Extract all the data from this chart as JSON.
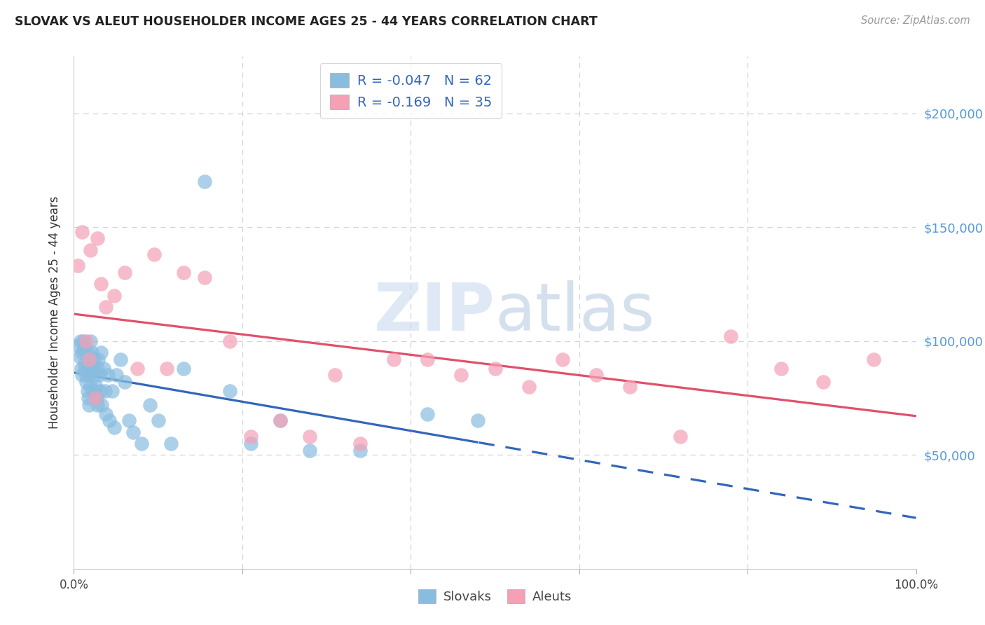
{
  "title": "SLOVAK VS ALEUT HOUSEHOLDER INCOME AGES 25 - 44 YEARS CORRELATION CHART",
  "source": "Source: ZipAtlas.com",
  "ylabel": "Householder Income Ages 25 - 44 years",
  "ytick_labels": [
    "$50,000",
    "$100,000",
    "$150,000",
    "$200,000"
  ],
  "ytick_values": [
    50000,
    100000,
    150000,
    200000
  ],
  "ylim": [
    0,
    225000
  ],
  "xlim": [
    0,
    1.0
  ],
  "slovak_R": -0.047,
  "slovak_N": 62,
  "aleut_R": -0.169,
  "aleut_N": 35,
  "slovak_color": "#89bde0",
  "aleut_color": "#f5a0b5",
  "slovak_line_color": "#3366bb",
  "aleut_line_color": "#e0506a",
  "legend_text_color": "#3366bb",
  "background_color": "#ffffff",
  "watermark_part1": "ZIP",
  "watermark_part2": "atlas",
  "slovak_x": [
    0.005,
    0.007,
    0.008,
    0.009,
    0.01,
    0.01,
    0.011,
    0.012,
    0.013,
    0.013,
    0.014,
    0.015,
    0.015,
    0.016,
    0.016,
    0.017,
    0.017,
    0.018,
    0.018,
    0.019,
    0.02,
    0.02,
    0.021,
    0.022,
    0.023,
    0.023,
    0.024,
    0.025,
    0.026,
    0.027,
    0.028,
    0.028,
    0.029,
    0.03,
    0.031,
    0.032,
    0.033,
    0.035,
    0.037,
    0.038,
    0.04,
    0.042,
    0.045,
    0.048,
    0.05,
    0.055,
    0.06,
    0.065,
    0.07,
    0.08,
    0.09,
    0.1,
    0.115,
    0.13,
    0.155,
    0.185,
    0.21,
    0.245,
    0.28,
    0.34,
    0.42,
    0.48
  ],
  "slovak_y": [
    98000,
    93000,
    100000,
    88000,
    95000,
    85000,
    100000,
    97000,
    96000,
    90000,
    88000,
    85000,
    82000,
    95000,
    78000,
    88000,
    75000,
    92000,
    72000,
    85000,
    100000,
    80000,
    95000,
    90000,
    88000,
    78000,
    92000,
    85000,
    80000,
    75000,
    88000,
    72000,
    92000,
    85000,
    78000,
    95000,
    72000,
    88000,
    78000,
    68000,
    85000,
    65000,
    78000,
    62000,
    85000,
    92000,
    82000,
    65000,
    60000,
    55000,
    72000,
    65000,
    55000,
    88000,
    170000,
    78000,
    55000,
    65000,
    52000,
    52000,
    68000,
    65000
  ],
  "aleut_x": [
    0.005,
    0.01,
    0.015,
    0.018,
    0.02,
    0.025,
    0.028,
    0.032,
    0.038,
    0.048,
    0.06,
    0.075,
    0.095,
    0.11,
    0.13,
    0.155,
    0.185,
    0.21,
    0.245,
    0.28,
    0.31,
    0.34,
    0.38,
    0.42,
    0.46,
    0.5,
    0.54,
    0.58,
    0.62,
    0.66,
    0.72,
    0.78,
    0.84,
    0.89,
    0.95
  ],
  "aleut_y": [
    133000,
    148000,
    100000,
    92000,
    140000,
    75000,
    145000,
    125000,
    115000,
    120000,
    130000,
    88000,
    138000,
    88000,
    130000,
    128000,
    100000,
    58000,
    65000,
    58000,
    85000,
    55000,
    92000,
    92000,
    85000,
    88000,
    80000,
    92000,
    85000,
    80000,
    58000,
    102000,
    88000,
    82000,
    92000
  ]
}
